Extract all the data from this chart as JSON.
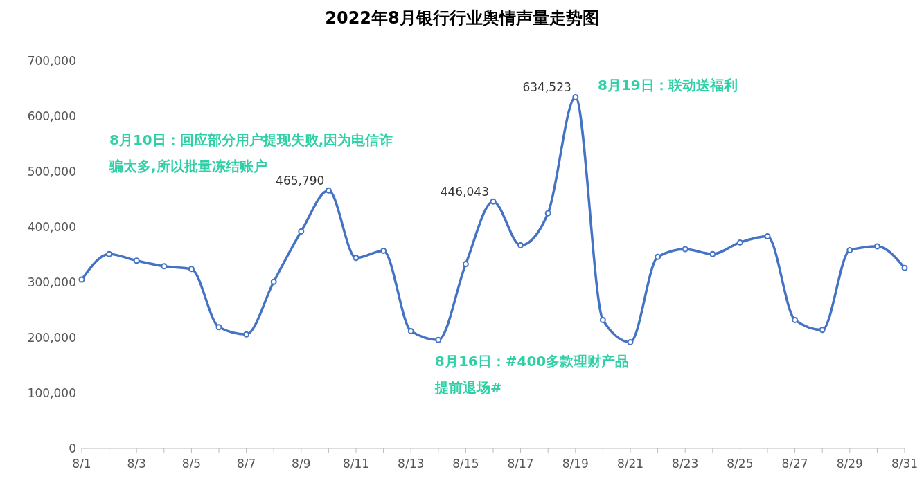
{
  "chart_data": {
    "type": "line",
    "title": "2022年8月银行行业舆情声量走势图",
    "categories": [
      "8/1",
      null,
      "8/3",
      null,
      "8/5",
      null,
      "8/7",
      null,
      "8/9",
      null,
      "8/11",
      null,
      "8/13",
      null,
      "8/15",
      null,
      "8/17",
      null,
      "8/19",
      null,
      "8/21",
      null,
      "8/23",
      null,
      "8/25",
      null,
      "8/27",
      null,
      "8/29",
      null,
      "8/31"
    ],
    "series": [
      {
        "color": "#4472c4",
        "values": [
          305000,
          351000,
          339000,
          329000,
          324000,
          219000,
          206000,
          301000,
          392000,
          465790,
          344000,
          357000,
          212000,
          196000,
          333000,
          446043,
          367000,
          425000,
          634523,
          232000,
          192000,
          346000,
          360000,
          351000,
          372000,
          383000,
          232000,
          214000,
          358000,
          365000,
          326000
        ],
        "value_labels": [
          null,
          null,
          null,
          null,
          null,
          null,
          null,
          null,
          null,
          "465,790",
          null,
          null,
          null,
          null,
          null,
          "446,043",
          null,
          null,
          "634,523",
          null,
          null,
          null,
          null,
          null,
          null,
          null,
          null,
          null,
          null,
          null,
          null
        ]
      }
    ],
    "ylim": [
      0,
      700000
    ],
    "yticks": [
      0,
      {
        "value": 100000,
        "label": "100,000"
      },
      {
        "value": 200000,
        "label": "200,000"
      },
      {
        "value": 300000,
        "label": "300,000"
      },
      {
        "value": 400000,
        "label": "400,000"
      },
      {
        "value": 500000,
        "label": "500,000"
      },
      {
        "value": 600000,
        "label": "600,000"
      },
      {
        "value": 700000,
        "label": "700,000"
      }
    ],
    "grid": false,
    "legend": false,
    "marker": "circle",
    "line_style": "solid",
    "annotations": [
      "8月10日：回应部分用户提现失败,因为电信诈骗太多,所以批量冻结账户",
      "8月16日：#400多款理财产品提前退场#",
      "8月19日：联动送福利"
    ]
  }
}
